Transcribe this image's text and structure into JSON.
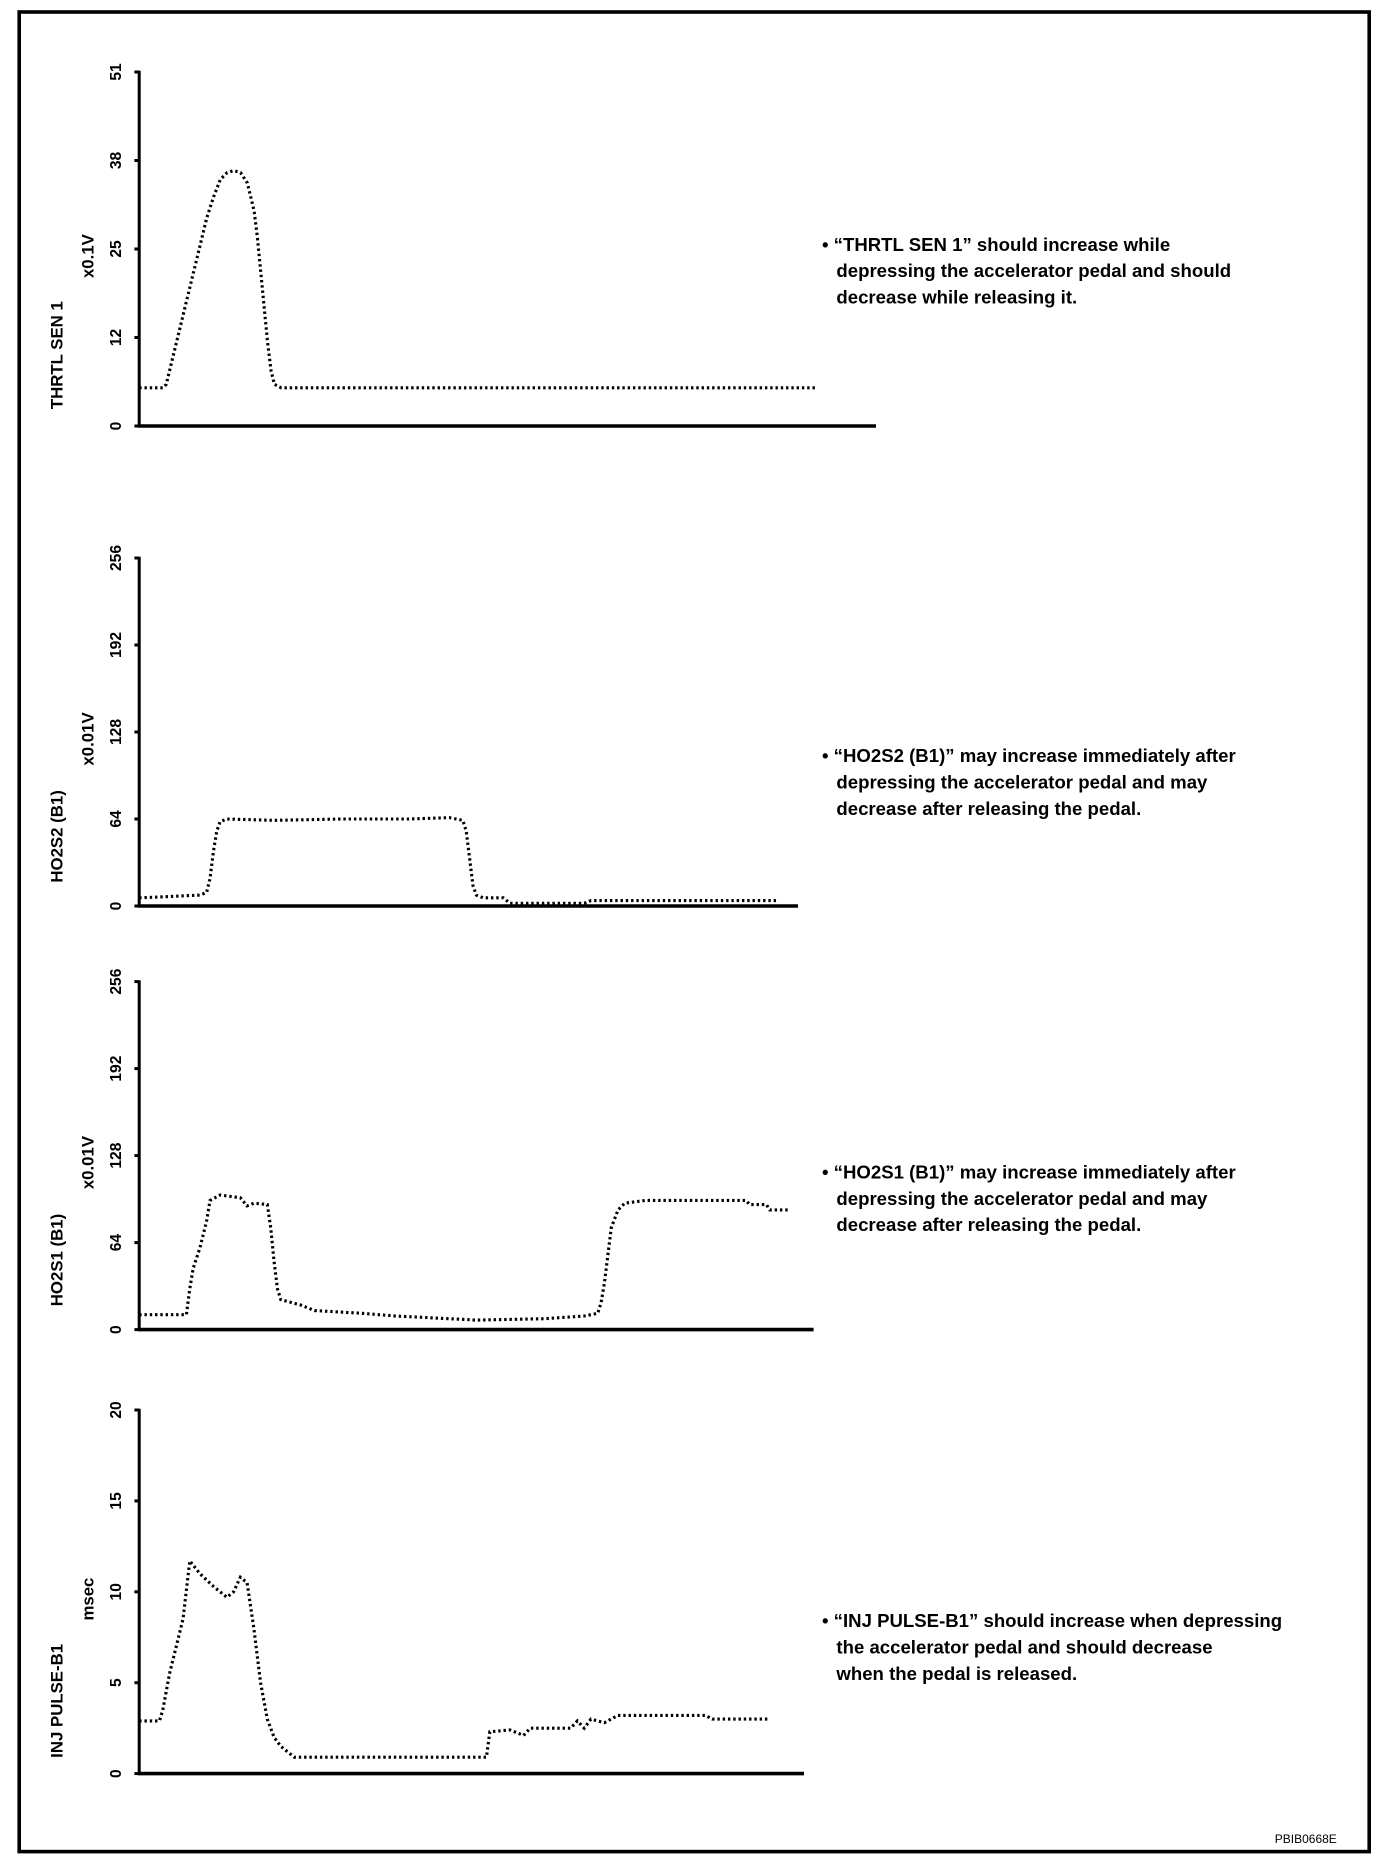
{
  "figure_code": "PBIB0668E",
  "colors": {
    "ink": "#000000",
    "background": "#ffffff"
  },
  "chart_data": [
    {
      "type": "line",
      "title": "THRTL SEN 1",
      "ylabel": "THRTL SEN 1",
      "unit": "x0.1V",
      "yticks": [
        "0",
        "12",
        "25",
        "38",
        "51"
      ],
      "ylim": [
        0,
        51
      ],
      "xlim": [
        0,
        109
      ],
      "xlabel": "",
      "grid": false,
      "note_lines": [
        "• “THRTL SEN 1” should increase while",
        "depressing the accelerator pedal and should",
        "decrease while releasing it."
      ],
      "points": [
        [
          0,
          5.5
        ],
        [
          3.5,
          5.5
        ],
        [
          4,
          6
        ],
        [
          4.5,
          8
        ],
        [
          5,
          10
        ],
        [
          6,
          14
        ],
        [
          7,
          18
        ],
        [
          8,
          22
        ],
        [
          9,
          26
        ],
        [
          10,
          30
        ],
        [
          11,
          33
        ],
        [
          12,
          35.5
        ],
        [
          13,
          36.5
        ],
        [
          14,
          36.8
        ],
        [
          15,
          36.5
        ],
        [
          16,
          35
        ],
        [
          17,
          31
        ],
        [
          17.5,
          27
        ],
        [
          18,
          22
        ],
        [
          18.5,
          17
        ],
        [
          19,
          12
        ],
        [
          19.5,
          8
        ],
        [
          20,
          6
        ],
        [
          21,
          5.5
        ],
        [
          100,
          5.5
        ]
      ]
    },
    {
      "type": "line",
      "title": "HO2S2 (B1)",
      "ylabel": "HO2S2 (B1)",
      "unit": "x0.01V",
      "yticks": [
        "0",
        "64",
        "128",
        "192",
        "256"
      ],
      "ylim": [
        0,
        256
      ],
      "xlim": [
        0,
        97.7
      ],
      "xlabel": "",
      "grid": false,
      "note_lines": [
        "• “HO2S2 (B1)” may increase immediately after",
        "depressing the accelerator pedal and may",
        "decrease after releasing the pedal."
      ],
      "points": [
        [
          0,
          6
        ],
        [
          9,
          8
        ],
        [
          10,
          10
        ],
        [
          10.5,
          20
        ],
        [
          11,
          40
        ],
        [
          11.5,
          55
        ],
        [
          12,
          62
        ],
        [
          13,
          64
        ],
        [
          20,
          63
        ],
        [
          30,
          64
        ],
        [
          40,
          64
        ],
        [
          46,
          65
        ],
        [
          48,
          63
        ],
        [
          48.5,
          55
        ],
        [
          49,
          35
        ],
        [
          49.5,
          15
        ],
        [
          50,
          8
        ],
        [
          51,
          6
        ],
        [
          54,
          6
        ],
        [
          55,
          2
        ],
        [
          66,
          2
        ],
        [
          67,
          4
        ],
        [
          94.7,
          4
        ]
      ]
    },
    {
      "type": "line",
      "title": "HO2S1 (B1)",
      "ylabel": "HO2S1 (B1)",
      "unit": "x0.01V",
      "yticks": [
        "0",
        "64",
        "128",
        "192",
        "256"
      ],
      "ylim": [
        0,
        256
      ],
      "xlim": [
        0,
        100
      ],
      "xlabel": "",
      "grid": false,
      "note_lines": [
        "• “HO2S1 (B1)” may increase immediately after",
        "depressing the accelerator pedal and may",
        "decrease after releasing the pedal."
      ],
      "points": [
        [
          0,
          11
        ],
        [
          7,
          11
        ],
        [
          7.5,
          30
        ],
        [
          8,
          45
        ],
        [
          9,
          60
        ],
        [
          10,
          80
        ],
        [
          10.5,
          95
        ],
        [
          12,
          99
        ],
        [
          15,
          97
        ],
        [
          16,
          91
        ],
        [
          17,
          93
        ],
        [
          19,
          92
        ],
        [
          19.5,
          75
        ],
        [
          20,
          50
        ],
        [
          20.5,
          30
        ],
        [
          21,
          22
        ],
        [
          24,
          18
        ],
        [
          26,
          14
        ],
        [
          33,
          12
        ],
        [
          38,
          10
        ],
        [
          50,
          7
        ],
        [
          60,
          8
        ],
        [
          66,
          10
        ],
        [
          68,
          12
        ],
        [
          68.5,
          20
        ],
        [
          69,
          35
        ],
        [
          69.5,
          55
        ],
        [
          70,
          75
        ],
        [
          71,
          88
        ],
        [
          72,
          93
        ],
        [
          75,
          95
        ],
        [
          90,
          95
        ],
        [
          90.5,
          92
        ],
        [
          93,
          92
        ],
        [
          93.5,
          88
        ],
        [
          96.3,
          88
        ]
      ]
    },
    {
      "type": "line",
      "title": "INJ PULSE-B1",
      "ylabel": "INJ PULSE-B1",
      "unit": "msec",
      "yticks": [
        "0",
        "5",
        "10",
        "15",
        "20"
      ],
      "ylim": [
        0,
        20
      ],
      "xlim": [
        0,
        98.6
      ],
      "xlabel": "",
      "grid": false,
      "note_lines": [
        "• “INJ PULSE-B1” should increase when depressing",
        "the accelerator pedal and should decrease",
        "when the pedal is released."
      ],
      "points": [
        [
          0,
          2.9
        ],
        [
          3,
          2.9
        ],
        [
          3.5,
          3.5
        ],
        [
          4.5,
          5.5
        ],
        [
          5.5,
          7
        ],
        [
          6.5,
          8.5
        ],
        [
          7.5,
          11.7
        ],
        [
          9,
          11
        ],
        [
          11,
          10.3
        ],
        [
          13,
          9.7
        ],
        [
          14,
          10
        ],
        [
          15,
          10.8
        ],
        [
          16,
          10.5
        ],
        [
          17,
          8
        ],
        [
          18,
          5
        ],
        [
          19,
          3
        ],
        [
          20,
          2
        ],
        [
          21,
          1.5
        ],
        [
          23,
          0.9
        ],
        [
          51.5,
          0.9
        ],
        [
          52,
          2.3
        ],
        [
          55,
          2.4
        ],
        [
          57,
          2.1
        ],
        [
          58,
          2.5
        ],
        [
          64,
          2.5
        ],
        [
          65,
          2.9
        ],
        [
          66,
          2.5
        ],
        [
          67,
          3
        ],
        [
          69,
          2.8
        ],
        [
          71,
          3.2
        ],
        [
          84,
          3.2
        ],
        [
          85,
          3
        ],
        [
          93.2,
          3
        ]
      ]
    }
  ]
}
